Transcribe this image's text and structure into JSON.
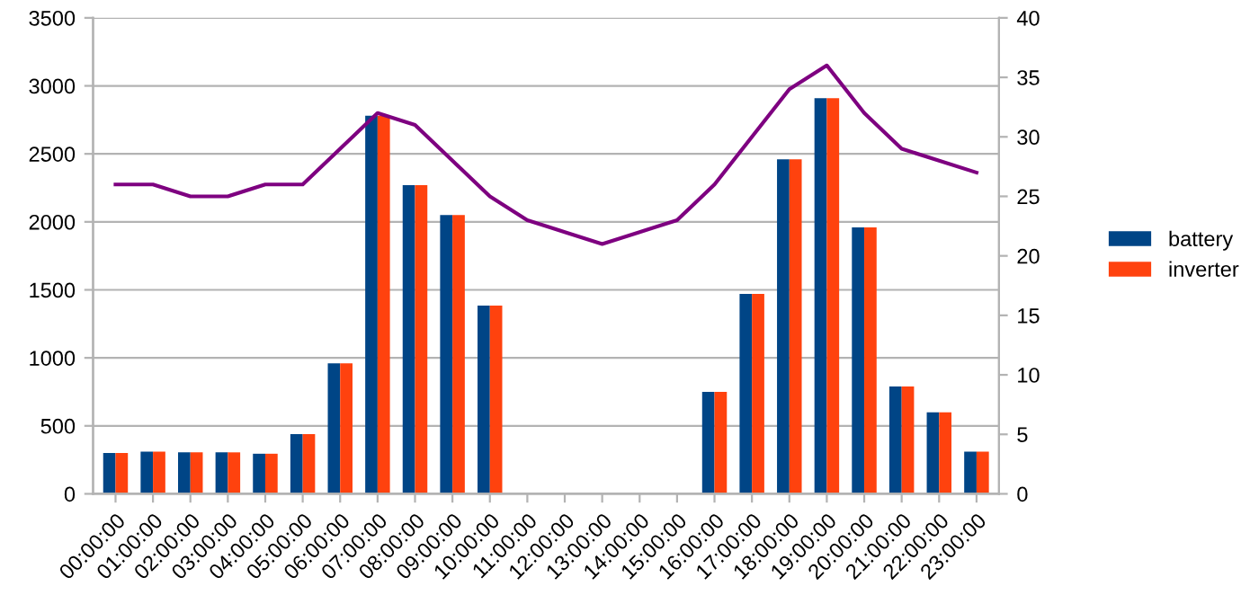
{
  "chart_data": {
    "type": "bar",
    "categories": [
      "00:00:00",
      "01:00:00",
      "02:00:00",
      "03:00:00",
      "04:00:00",
      "05:00:00",
      "06:00:00",
      "07:00:00",
      "08:00:00",
      "09:00:00",
      "10:00:00",
      "11:00:00",
      "12:00:00",
      "13:00:00",
      "14:00:00",
      "15:00:00",
      "16:00:00",
      "17:00:00",
      "18:00:00",
      "19:00:00",
      "20:00:00",
      "21:00:00",
      "22:00:00",
      "23:00:00"
    ],
    "series": [
      {
        "name": "battery",
        "color": "#004586",
        "values": [
          300,
          310,
          305,
          305,
          295,
          440,
          960,
          2780,
          2270,
          2050,
          1385,
          null,
          null,
          null,
          null,
          null,
          750,
          1470,
          2460,
          2910,
          1960,
          790,
          600,
          310
        ]
      },
      {
        "name": "inverter",
        "color": "#ff420e",
        "values": [
          300,
          310,
          305,
          305,
          295,
          440,
          960,
          2780,
          2270,
          2050,
          1385,
          null,
          null,
          null,
          null,
          null,
          750,
          1470,
          2460,
          2910,
          1960,
          790,
          600,
          310
        ]
      },
      {
        "type": "line",
        "axis": "y2",
        "color": "#7e0080",
        "values": [
          26,
          26,
          25,
          25,
          26,
          26,
          29,
          32,
          31,
          28,
          25,
          23,
          22,
          21,
          22,
          23,
          26,
          30,
          34,
          36,
          32,
          29,
          28,
          27
        ]
      }
    ],
    "ylim": [
      0,
      3500
    ],
    "yticks": [
      0,
      500,
      1000,
      1500,
      2000,
      2500,
      3000,
      3500
    ],
    "y2lim": [
      0,
      40
    ],
    "y2ticks": [
      0,
      5,
      10,
      15,
      20,
      25,
      30,
      35,
      40
    ],
    "grid": "y",
    "legend": "right"
  }
}
